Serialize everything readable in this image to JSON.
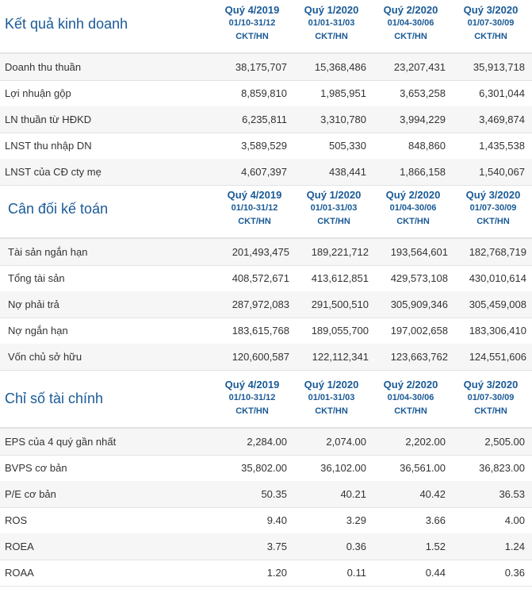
{
  "columns": [
    {
      "quarter": "Quý 4/2019",
      "range": "01/10-31/12",
      "audit": "CKT/HN"
    },
    {
      "quarter": "Quý 1/2020",
      "range": "01/01-31/03",
      "audit": "CKT/HN"
    },
    {
      "quarter": "Quý 2/2020",
      "range": "01/04-30/06",
      "audit": "CKT/HN"
    },
    {
      "quarter": "Quý 3/2020",
      "range": "01/07-30/09",
      "audit": "CKT/HN"
    }
  ],
  "sections": [
    {
      "title": "Kết quả kinh doanh",
      "rows": [
        {
          "label": "Doanh thu thuần",
          "values": [
            "38,175,707",
            "15,368,486",
            "23,207,431",
            "35,913,718"
          ]
        },
        {
          "label": "Lợi nhuận gộp",
          "values": [
            "8,859,810",
            "1,985,951",
            "3,653,258",
            "6,301,044"
          ]
        },
        {
          "label": "LN thuần từ HĐKD",
          "values": [
            "6,235,811",
            "3,310,780",
            "3,994,229",
            "3,469,874"
          ]
        },
        {
          "label": "LNST thu nhập DN",
          "values": [
            "3,589,529",
            "505,330",
            "848,860",
            "1,435,538"
          ]
        },
        {
          "label": "LNST của CĐ cty mẹ",
          "values": [
            "4,607,397",
            "438,441",
            "1,866,158",
            "1,540,067"
          ]
        }
      ]
    },
    {
      "title": "Cân đối kế toán",
      "rows": [
        {
          "label": "Tài sản ngắn hạn",
          "values": [
            "201,493,475",
            "189,221,712",
            "193,564,601",
            "182,768,719"
          ]
        },
        {
          "label": "Tổng tài sản",
          "values": [
            "408,572,671",
            "413,612,851",
            "429,573,108",
            "430,010,614"
          ]
        },
        {
          "label": "Nợ phải trả",
          "values": [
            "287,972,083",
            "291,500,510",
            "305,909,346",
            "305,459,008"
          ]
        },
        {
          "label": "Nợ ngắn hạn",
          "values": [
            "183,615,768",
            "189,055,700",
            "197,002,658",
            "183,306,410"
          ]
        },
        {
          "label": "Vốn chủ sở hữu",
          "values": [
            "120,600,587",
            "122,112,341",
            "123,663,762",
            "124,551,606"
          ]
        }
      ]
    },
    {
      "title": "Chỉ số tài chính",
      "rows": [
        {
          "label": "EPS của 4 quý gần nhất",
          "values": [
            "2,284.00",
            "2,074.00",
            "2,202.00",
            "2,505.00"
          ]
        },
        {
          "label": "BVPS cơ bản",
          "values": [
            "35,802.00",
            "36,102.00",
            "36,561.00",
            "36,823.00"
          ]
        },
        {
          "label": "P/E cơ bản",
          "values": [
            "50.35",
            "40.21",
            "40.42",
            "36.53"
          ]
        },
        {
          "label": "ROS",
          "values": [
            "9.40",
            "3.29",
            "3.66",
            "4.00"
          ]
        },
        {
          "label": "ROEA",
          "values": [
            "3.75",
            "0.36",
            "1.52",
            "1.24"
          ]
        },
        {
          "label": "ROAA",
          "values": [
            "1.20",
            "0.11",
            "0.44",
            "0.36"
          ]
        }
      ]
    }
  ]
}
